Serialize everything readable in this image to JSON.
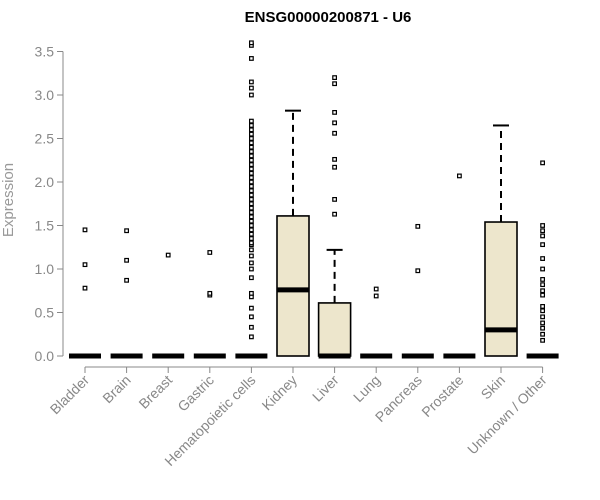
{
  "chart_data": {
    "type": "boxplot",
    "title": "ENSG00000200871 - U6",
    "xlabel": "",
    "ylabel": "Expression",
    "ylim": [
      0,
      3.6
    ],
    "yticks": [
      "0.0",
      "0.5",
      "1.0",
      "1.5",
      "2.0",
      "2.5",
      "3.0",
      "3.5"
    ],
    "box_fill": "#ede6cc",
    "categories": [
      "Bladder",
      "Brain",
      "Breast",
      "Gastric",
      "Hematopoietic cells",
      "Kidney",
      "Liver",
      "Lung",
      "Pancreas",
      "Prostate",
      "Skin",
      "Unknown / Other"
    ],
    "boxes": [
      {
        "q1": 0,
        "median": 0,
        "q3": 0,
        "whisker_low": 0,
        "whisker_high": 0,
        "outliers": [
          0.78,
          1.05,
          1.45
        ]
      },
      {
        "q1": 0,
        "median": 0,
        "q3": 0,
        "whisker_low": 0,
        "whisker_high": 0,
        "outliers": [
          0.87,
          1.1,
          1.44
        ]
      },
      {
        "q1": 0,
        "median": 0,
        "q3": 0,
        "whisker_low": 0,
        "whisker_high": 0,
        "outliers": [
          1.16
        ]
      },
      {
        "q1": 0,
        "median": 0,
        "q3": 0,
        "whisker_low": 0,
        "whisker_high": 0,
        "outliers": [
          0.7,
          0.72,
          1.19
        ]
      },
      {
        "q1": 0,
        "median": 0,
        "q3": 0,
        "whisker_low": 0,
        "whisker_high": 0,
        "outliers": [
          0.22,
          0.33,
          0.45,
          0.55,
          0.68,
          0.72,
          0.9,
          1.0,
          1.07,
          1.15,
          1.22,
          1.28,
          1.3,
          1.35,
          1.4,
          1.45,
          1.5,
          1.55,
          1.6,
          1.65,
          1.7,
          1.75,
          1.8,
          1.85,
          1.9,
          1.95,
          2.0,
          2.05,
          2.1,
          2.15,
          2.2,
          2.25,
          2.3,
          2.35,
          2.4,
          2.45,
          2.5,
          2.55,
          2.6,
          2.65,
          2.7,
          3.0,
          3.08,
          3.15,
          3.42,
          3.57,
          3.6
        ]
      },
      {
        "q1": 0,
        "median": 0.76,
        "q3": 1.61,
        "whisker_low": 0,
        "whisker_high": 2.82,
        "outliers": []
      },
      {
        "q1": 0,
        "median": 0,
        "q3": 0.61,
        "whisker_low": 0,
        "whisker_high": 1.22,
        "outliers": [
          1.63,
          1.8,
          2.17,
          2.26,
          2.56,
          2.68,
          2.8,
          3.13,
          3.2
        ]
      },
      {
        "q1": 0,
        "median": 0,
        "q3": 0,
        "whisker_low": 0,
        "whisker_high": 0,
        "outliers": [
          0.69,
          0.77
        ]
      },
      {
        "q1": 0,
        "median": 0,
        "q3": 0,
        "whisker_low": 0,
        "whisker_high": 0,
        "outliers": [
          0.98,
          1.49
        ]
      },
      {
        "q1": 0,
        "median": 0,
        "q3": 0,
        "whisker_low": 0,
        "whisker_high": 0,
        "outliers": [
          2.07
        ]
      },
      {
        "q1": 0,
        "median": 0.3,
        "q3": 1.54,
        "whisker_low": 0,
        "whisker_high": 2.65,
        "outliers": []
      },
      {
        "q1": 0,
        "median": 0,
        "q3": 0,
        "whisker_low": 0,
        "whisker_high": 0,
        "outliers": [
          0.18,
          0.25,
          0.32,
          0.38,
          0.45,
          0.52,
          0.57,
          0.7,
          0.75,
          0.82,
          0.88,
          1.0,
          1.12,
          1.28,
          1.38,
          1.44,
          1.5,
          2.22
        ]
      }
    ]
  }
}
